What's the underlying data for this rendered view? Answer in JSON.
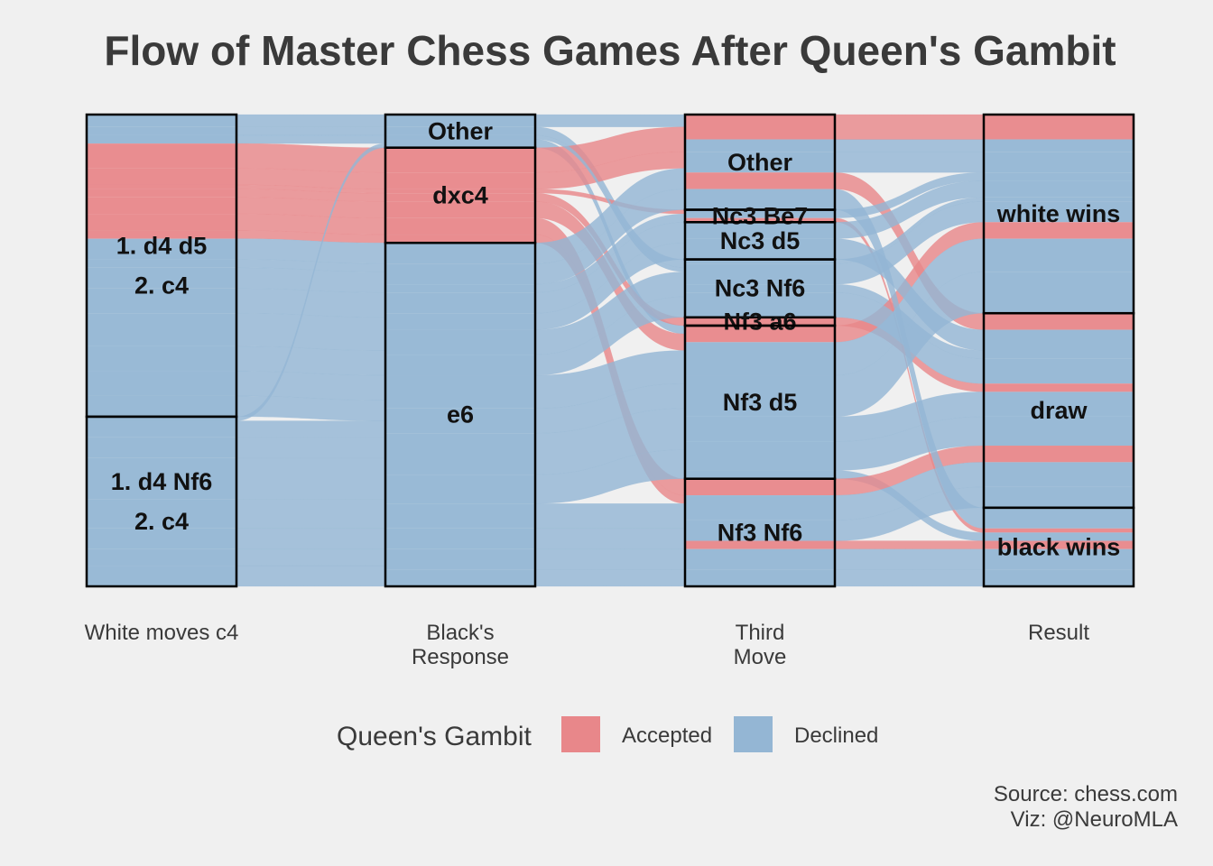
{
  "chart_data": {
    "type": "alluvial",
    "title": "Flow of Master Chess Games After Queen's Gambit",
    "axes": [
      {
        "name": "white_moves",
        "label": [
          "White moves c4"
        ]
      },
      {
        "name": "black_response",
        "label": [
          "Black's",
          "Response"
        ]
      },
      {
        "name": "third_move",
        "label": [
          "Third",
          "Move"
        ]
      },
      {
        "name": "result",
        "label": [
          "Result"
        ]
      }
    ],
    "strata": {
      "white_moves": [
        {
          "name": "1. d4 d5\n2. c4",
          "label": [
            "1. d4 d5",
            "2. c4"
          ]
        },
        {
          "name": "1. d4 Nf6\n2. c4",
          "label": [
            "1. d4 Nf6",
            "2. c4"
          ]
        }
      ],
      "black_response": [
        {
          "name": "Other",
          "label": [
            "Other"
          ]
        },
        {
          "name": "dxc4",
          "label": [
            "dxc4"
          ]
        },
        {
          "name": "e6",
          "label": [
            "e6"
          ]
        }
      ],
      "third_move": [
        {
          "name": "Other",
          "label": [
            "Other"
          ]
        },
        {
          "name": "Nc3 Be7",
          "label": [
            "Nc3 Be7"
          ]
        },
        {
          "name": "Nc3 d5",
          "label": [
            "Nc3 d5"
          ]
        },
        {
          "name": "Nc3 Nf6",
          "label": [
            "Nc3 Nf6"
          ]
        },
        {
          "name": "Nf3 a6",
          "label": [
            "Nf3 a6"
          ]
        },
        {
          "name": "Nf3 d5",
          "label": [
            "Nf3 d5"
          ]
        },
        {
          "name": "Nf3 Nf6",
          "label": [
            "Nf3 Nf6"
          ]
        }
      ],
      "result": [
        {
          "name": "white wins",
          "label": [
            "white wins"
          ]
        },
        {
          "name": "draw",
          "label": [
            "draw"
          ]
        },
        {
          "name": "black wins",
          "label": [
            "black wins"
          ]
        }
      ]
    },
    "legend": {
      "title": "Queen's Gambit",
      "position": "bottom",
      "entries": [
        {
          "name": "Accepted",
          "color": "#e8878a"
        },
        {
          "name": "Declined",
          "color": "#94b6d4"
        }
      ]
    },
    "flow_colors": {
      "Accepted": "#e8878a",
      "Declined": "#94b6d4"
    },
    "flows": [
      {
        "path": [
          "1. d4 d5\n2. c4",
          "Other",
          "Other",
          "white wins"
        ],
        "type": "Declined",
        "value": 3
      },
      {
        "path": [
          "1. d4 d5\n2. c4",
          "Other",
          "Nc3 Nf6",
          "draw"
        ],
        "type": "Declined",
        "value": 2
      },
      {
        "path": [
          "1. d4 d5\n2. c4",
          "Other",
          "Nf3 d5",
          "black wins"
        ],
        "type": "Declined",
        "value": 2
      },
      {
        "path": [
          "1. d4 d5\n2. c4",
          "dxc4",
          "Other",
          "white wins"
        ],
        "type": "Accepted",
        "value": 6
      },
      {
        "path": [
          "1. d4 d5\n2. c4",
          "dxc4",
          "Other",
          "draw"
        ],
        "type": "Accepted",
        "value": 4
      },
      {
        "path": [
          "1. d4 d5\n2. c4",
          "dxc4",
          "Nc3 Be7",
          "black wins"
        ],
        "type": "Accepted",
        "value": 1
      },
      {
        "path": [
          "1. d4 d5\n2. c4",
          "dxc4",
          "Nf3 a6",
          "draw"
        ],
        "type": "Accepted",
        "value": 2
      },
      {
        "path": [
          "1. d4 d5\n2. c4",
          "dxc4",
          "Nf3 d5",
          "white wins"
        ],
        "type": "Accepted",
        "value": 4
      },
      {
        "path": [
          "1. d4 d5\n2. c4",
          "dxc4",
          "Nf3 Nf6",
          "draw"
        ],
        "type": "Accepted",
        "value": 4
      },
      {
        "path": [
          "1. d4 d5\n2. c4",
          "dxc4",
          "Nf3 Nf6",
          "black wins"
        ],
        "type": "Accepted",
        "value": 2
      },
      {
        "path": [
          "1. d4 d5\n2. c4",
          "e6",
          "Other",
          "white wins"
        ],
        "type": "Declined",
        "value": 5
      },
      {
        "path": [
          "1. d4 d5\n2. c4",
          "e6",
          "Nc3 Be7",
          "white wins"
        ],
        "type": "Declined",
        "value": 2
      },
      {
        "path": [
          "1. d4 d5\n2. c4",
          "e6",
          "Nc3 d5",
          "draw"
        ],
        "type": "Declined",
        "value": 5
      },
      {
        "path": [
          "1. d4 d5\n2. c4",
          "e6",
          "Nc3 Nf6",
          "draw"
        ],
        "type": "Declined",
        "value": 6
      },
      {
        "path": [
          "1. d4 d5\n2. c4",
          "e6",
          "Nf3 d5",
          "white wins"
        ],
        "type": "Declined",
        "value": 8
      },
      {
        "path": [
          "1. d4 d5\n2. c4",
          "e6",
          "Nf3 d5",
          "draw"
        ],
        "type": "Declined",
        "value": 6
      },
      {
        "path": [
          "1. d4 d5\n2. c4",
          "e6",
          "Nf3 Nf6",
          "draw"
        ],
        "type": "Declined",
        "value": 6
      },
      {
        "path": [
          "1. d4 d5\n2. c4",
          "e6",
          "Nf3 Nf6",
          "black wins"
        ],
        "type": "Declined",
        "value": 5
      },
      {
        "path": [
          "1. d4 Nf6\n2. c4",
          "Other",
          "Nc3 Nf6",
          "white wins"
        ],
        "type": "Declined",
        "value": 1
      },
      {
        "path": [
          "1. d4 Nf6\n2. c4",
          "e6",
          "Nc3 d5",
          "white wins"
        ],
        "type": "Declined",
        "value": 4
      },
      {
        "path": [
          "1. d4 Nf6\n2. c4",
          "e6",
          "Nc3 Nf6",
          "white wins"
        ],
        "type": "Declined",
        "value": 5
      },
      {
        "path": [
          "1. d4 Nf6\n2. c4",
          "e6",
          "Nf3 d5",
          "white wins"
        ],
        "type": "Declined",
        "value": 10
      },
      {
        "path": [
          "1. d4 Nf6\n2. c4",
          "e6",
          "Nf3 d5",
          "draw"
        ],
        "type": "Declined",
        "value": 7
      },
      {
        "path": [
          "1. d4 Nf6\n2. c4",
          "e6",
          "Nf3 Nf6",
          "draw"
        ],
        "type": "Declined",
        "value": 5
      },
      {
        "path": [
          "1. d4 Nf6\n2. c4",
          "e6",
          "Nf3 Nf6",
          "black wins"
        ],
        "type": "Declined",
        "value": 4
      },
      {
        "path": [
          "1. d4 Nf6\n2. c4",
          "e6",
          "Other",
          "black wins"
        ],
        "type": "Declined",
        "value": 5
      }
    ],
    "caption": [
      "Source: chess.com",
      "Viz: @NeuroMLA"
    ]
  }
}
